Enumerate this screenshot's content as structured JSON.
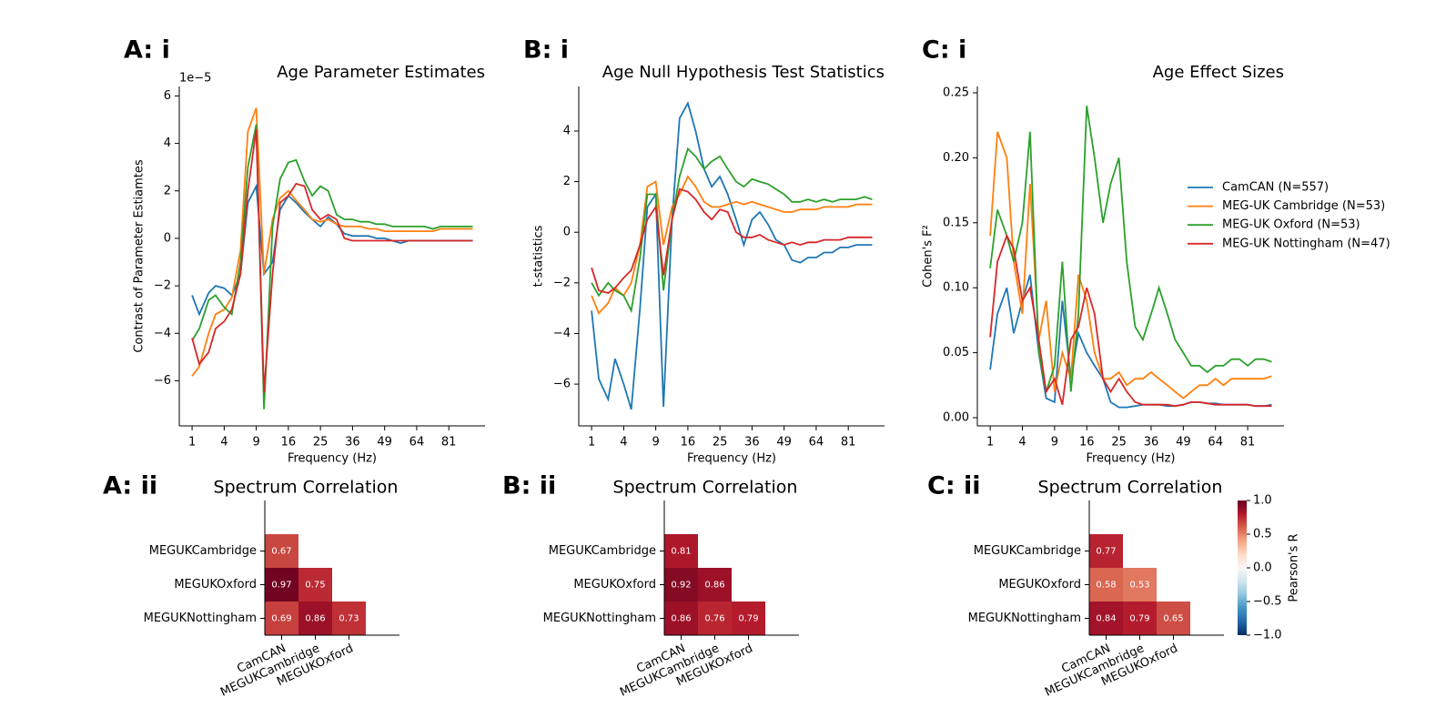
{
  "chart_data": [
    {
      "type": "line",
      "panel_label": "A: i",
      "title": "Age Parameter Estimates",
      "xlabel": "Frequency (Hz)",
      "ylabel": "Contrast of Parameter Estiamtes",
      "y_offset_label": "1e−5",
      "xscale": "sqrt",
      "xlim": [
        0.36,
        102.6
      ],
      "xticks": [
        1,
        4,
        9,
        16,
        25,
        36,
        49,
        64,
        81
      ],
      "ylim": [
        -7.9,
        6.4
      ],
      "yticks": [
        {
          "value": -6,
          "label": "−6"
        },
        {
          "value": -4,
          "label": "−4"
        },
        {
          "value": -2,
          "label": "−2"
        },
        0,
        2,
        4,
        6
      ],
      "x": [
        1,
        1.5,
        2.3,
        3,
        4,
        5,
        6.3,
        7.5,
        9,
        10.5,
        12.3,
        14,
        16,
        18,
        20.3,
        22.5,
        25,
        27.5,
        30.3,
        33,
        36,
        39,
        42.3,
        45.5,
        49,
        52.5,
        56.3,
        60,
        64,
        68,
        72.3,
        76.5,
        81,
        85.5,
        90.3,
        95
      ],
      "series": [
        {
          "color": "#1f77b4",
          "values": [
            -2.4,
            -3.2,
            -2.3,
            -2.0,
            -2.1,
            -2.4,
            -1.5,
            1.5,
            2.2,
            -1.5,
            -1.0,
            1.2,
            1.8,
            1.5,
            1.1,
            0.8,
            0.5,
            0.9,
            0.6,
            0.2,
            0.1,
            0.1,
            0.1,
            0.0,
            0.0,
            -0.1,
            -0.2,
            -0.1,
            -0.1,
            -0.1,
            -0.1,
            -0.1,
            -0.1,
            -0.1,
            -0.1,
            -0.1
          ]
        },
        {
          "color": "#ff7f0e",
          "values": [
            -5.8,
            -5.4,
            -4.0,
            -3.2,
            -3.0,
            -2.5,
            -0.5,
            4.5,
            5.5,
            -1.5,
            0.8,
            1.7,
            2.0,
            1.6,
            1.2,
            0.8,
            0.7,
            0.8,
            0.6,
            0.5,
            0.5,
            0.5,
            0.4,
            0.4,
            0.3,
            0.3,
            0.3,
            0.3,
            0.3,
            0.3,
            0.3,
            0.4,
            0.4,
            0.4,
            0.4,
            0.4
          ]
        },
        {
          "color": "#2ca02c",
          "values": [
            -4.3,
            -3.8,
            -2.6,
            -2.4,
            -2.9,
            -3.2,
            -1.0,
            3.0,
            4.8,
            -7.2,
            0.5,
            2.5,
            3.2,
            3.3,
            2.4,
            1.8,
            2.2,
            2.0,
            1.0,
            0.8,
            0.8,
            0.7,
            0.7,
            0.6,
            0.6,
            0.5,
            0.5,
            0.5,
            0.5,
            0.5,
            0.4,
            0.5,
            0.5,
            0.5,
            0.5,
            0.5
          ]
        },
        {
          "color": "#d62728",
          "values": [
            -4.2,
            -5.3,
            -4.8,
            -3.8,
            -3.5,
            -3.0,
            -1.5,
            2.0,
            4.6,
            -6.5,
            -1.5,
            1.5,
            1.8,
            2.3,
            2.2,
            1.2,
            0.8,
            1.0,
            0.8,
            0.0,
            -0.1,
            -0.1,
            -0.1,
            -0.1,
            -0.1,
            -0.1,
            -0.1,
            -0.1,
            -0.1,
            -0.1,
            -0.1,
            -0.1,
            -0.1,
            -0.1,
            -0.1,
            -0.1
          ]
        }
      ]
    },
    {
      "type": "line",
      "panel_label": "B: i",
      "title": "Age Null Hypothesis Test Statistics",
      "xlabel": "Frequency (Hz)",
      "ylabel": "t-statistics",
      "xscale": "sqrt",
      "xlim": [
        0.36,
        102.6
      ],
      "xticks": [
        1,
        4,
        9,
        16,
        25,
        36,
        49,
        64,
        81
      ],
      "ylim": [
        -7.65,
        5.76
      ],
      "yticks": [
        {
          "value": -6,
          "label": "−6"
        },
        {
          "value": -4,
          "label": "−4"
        },
        {
          "value": -2,
          "label": "−2"
        },
        0,
        2,
        4
      ],
      "x": [
        1,
        1.5,
        2.3,
        3,
        4,
        5,
        6.3,
        7.5,
        9,
        10.5,
        12.3,
        14,
        16,
        18,
        20.3,
        22.5,
        25,
        27.5,
        30.3,
        33,
        36,
        39,
        42.3,
        45.5,
        49,
        52.5,
        56.3,
        60,
        64,
        68,
        72.3,
        76.5,
        81,
        85.5,
        90.3,
        95
      ],
      "series": [
        {
          "color": "#1f77b4",
          "values": [
            -3.1,
            -5.8,
            -6.6,
            -5.0,
            -6.0,
            -7.0,
            -3.0,
            1.0,
            1.5,
            -6.9,
            0.5,
            4.5,
            5.1,
            4.0,
            2.5,
            1.8,
            2.2,
            1.5,
            0.5,
            -0.5,
            0.5,
            0.8,
            0.3,
            -0.3,
            -0.5,
            -1.1,
            -1.2,
            -1.0,
            -1.0,
            -0.8,
            -0.8,
            -0.6,
            -0.6,
            -0.5,
            -0.5,
            -0.5
          ]
        },
        {
          "color": "#ff7f0e",
          "values": [
            -2.5,
            -3.2,
            -2.8,
            -2.2,
            -2.5,
            -2.0,
            -0.5,
            1.8,
            2.0,
            -0.5,
            1.0,
            1.5,
            2.2,
            1.8,
            1.2,
            1.0,
            1.0,
            1.1,
            1.2,
            1.1,
            1.2,
            1.1,
            1.0,
            0.9,
            0.8,
            0.8,
            0.9,
            0.9,
            0.9,
            1.0,
            1.0,
            1.0,
            1.0,
            1.1,
            1.1,
            1.1
          ]
        },
        {
          "color": "#2ca02c",
          "values": [
            -2.0,
            -2.5,
            -2.0,
            -2.3,
            -2.5,
            -3.1,
            -1.0,
            1.5,
            1.5,
            -2.3,
            0.5,
            2.2,
            3.3,
            3.0,
            2.5,
            2.8,
            3.0,
            2.5,
            2.0,
            1.8,
            2.1,
            2.0,
            1.9,
            1.7,
            1.5,
            1.2,
            1.2,
            1.3,
            1.2,
            1.3,
            1.2,
            1.3,
            1.3,
            1.3,
            1.4,
            1.3
          ]
        },
        {
          "color": "#d62728",
          "values": [
            -1.4,
            -2.3,
            -2.4,
            -2.2,
            -1.8,
            -1.5,
            -0.5,
            0.5,
            1.0,
            -1.7,
            0.5,
            1.7,
            1.6,
            1.3,
            0.8,
            0.5,
            0.9,
            0.8,
            0.0,
            -0.2,
            -0.2,
            -0.1,
            -0.3,
            -0.4,
            -0.5,
            -0.4,
            -0.5,
            -0.4,
            -0.4,
            -0.3,
            -0.3,
            -0.3,
            -0.2,
            -0.2,
            -0.2,
            -0.2
          ]
        }
      ]
    },
    {
      "type": "line",
      "panel_label": "C: i",
      "title": "Age Effect Sizes",
      "xlabel": "Frequency (Hz)",
      "ylabel": "Cohen's F²",
      "xscale": "sqrt",
      "xlim": [
        0.36,
        102.6
      ],
      "xticks": [
        1,
        4,
        9,
        16,
        25,
        36,
        49,
        64,
        81
      ],
      "ylim": [
        -0.0063,
        0.2549
      ],
      "yticks": [
        {
          "value": 0,
          "label": "0.00"
        },
        0.05,
        {
          "value": 0.1,
          "label": "0.10"
        },
        0.15,
        {
          "value": 0.2,
          "label": "0.20"
        },
        0.25
      ],
      "x": [
        1,
        1.5,
        2.3,
        3,
        4,
        5,
        6.3,
        7.5,
        9,
        10.5,
        12.3,
        14,
        16,
        18,
        20.3,
        22.5,
        25,
        27.5,
        30.3,
        33,
        36,
        39,
        42.3,
        45.5,
        49,
        52.5,
        56.3,
        60,
        64,
        68,
        72.3,
        76.5,
        81,
        85.5,
        90.3,
        95
      ],
      "legend": "outside right",
      "series": [
        {
          "name": "CamCAN (N=557)",
          "color": "#1f77b4",
          "values": [
            0.037,
            0.08,
            0.1,
            0.065,
            0.09,
            0.11,
            0.05,
            0.015,
            0.012,
            0.09,
            0.03,
            0.065,
            0.05,
            0.04,
            0.03,
            0.012,
            0.008,
            0.008,
            0.009,
            0.01,
            0.01,
            0.01,
            0.009,
            0.009,
            0.01,
            0.012,
            0.012,
            0.011,
            0.011,
            0.01,
            0.01,
            0.01,
            0.01,
            0.009,
            0.009,
            0.01
          ]
        },
        {
          "name": "MEG-UK Cambridge (N=53)",
          "color": "#ff7f0e",
          "values": [
            0.14,
            0.22,
            0.2,
            0.12,
            0.08,
            0.18,
            0.06,
            0.09,
            0.02,
            0.05,
            0.03,
            0.11,
            0.09,
            0.05,
            0.03,
            0.03,
            0.035,
            0.025,
            0.03,
            0.03,
            0.035,
            0.03,
            0.025,
            0.02,
            0.015,
            0.02,
            0.025,
            0.025,
            0.03,
            0.025,
            0.03,
            0.03,
            0.03,
            0.03,
            0.03,
            0.032
          ]
        },
        {
          "name": "MEG-UK Oxford (N=53)",
          "color": "#2ca02c",
          "values": [
            0.115,
            0.16,
            0.14,
            0.12,
            0.15,
            0.22,
            0.05,
            0.02,
            0.04,
            0.12,
            0.02,
            0.08,
            0.24,
            0.2,
            0.15,
            0.18,
            0.2,
            0.12,
            0.07,
            0.06,
            0.08,
            0.1,
            0.08,
            0.06,
            0.05,
            0.04,
            0.04,
            0.035,
            0.04,
            0.04,
            0.045,
            0.045,
            0.04,
            0.045,
            0.045,
            0.043
          ]
        },
        {
          "name": "MEG-UK Nottingham (N=47)",
          "color": "#d62728",
          "values": [
            0.062,
            0.12,
            0.14,
            0.13,
            0.09,
            0.1,
            0.06,
            0.02,
            0.03,
            0.01,
            0.06,
            0.07,
            0.1,
            0.08,
            0.03,
            0.02,
            0.03,
            0.02,
            0.012,
            0.01,
            0.01,
            0.01,
            0.01,
            0.009,
            0.01,
            0.012,
            0.012,
            0.011,
            0.01,
            0.01,
            0.01,
            0.01,
            0.01,
            0.009,
            0.009,
            0.009
          ]
        }
      ]
    },
    {
      "type": "heatmap",
      "panel_label": "A: ii",
      "title": "Spectrum Correlation",
      "colormap": "RdBu_r",
      "clim": [
        -1,
        1
      ],
      "rows": [
        "MEGUKCambridge",
        "MEGUKOxford",
        "MEGUKNottingham"
      ],
      "columns": [
        "CamCAN",
        "MEGUKCambridge",
        "MEGUKOxford"
      ],
      "values": [
        [
          0.67,
          null,
          null
        ],
        [
          0.97,
          0.75,
          null
        ],
        [
          0.69,
          0.86,
          0.73
        ]
      ]
    },
    {
      "type": "heatmap",
      "panel_label": "B: ii",
      "title": "Spectrum Correlation",
      "colormap": "RdBu_r",
      "clim": [
        -1,
        1
      ],
      "rows": [
        "MEGUKCambridge",
        "MEGUKOxford",
        "MEGUKNottingham"
      ],
      "columns": [
        "CamCAN",
        "MEGUKCambridge",
        "MEGUKOxford"
      ],
      "values": [
        [
          0.81,
          null,
          null
        ],
        [
          0.92,
          0.86,
          null
        ],
        [
          0.86,
          0.76,
          0.79
        ]
      ]
    },
    {
      "type": "heatmap",
      "panel_label": "C: ii",
      "title": "Spectrum Correlation",
      "colormap": "RdBu_r",
      "clim": [
        -1,
        1
      ],
      "rows": [
        "MEGUKCambridge",
        "MEGUKOxford",
        "MEGUKNottingham"
      ],
      "columns": [
        "CamCAN",
        "MEGUKCambridge",
        "MEGUKOxford"
      ],
      "values": [
        [
          0.77,
          null,
          null
        ],
        [
          0.58,
          0.53,
          null
        ],
        [
          0.84,
          0.79,
          0.65
        ]
      ],
      "colorbar": {
        "label": "Pearson's R",
        "ticks": [
          {
            "value": -1,
            "label": "−1.0"
          },
          {
            "value": -0.5,
            "label": "−0.5"
          },
          {
            "value": 0,
            "label": "0.0"
          },
          {
            "value": 0.5,
            "label": "0.5"
          },
          {
            "value": 1,
            "label": "1.0"
          }
        ]
      }
    }
  ]
}
